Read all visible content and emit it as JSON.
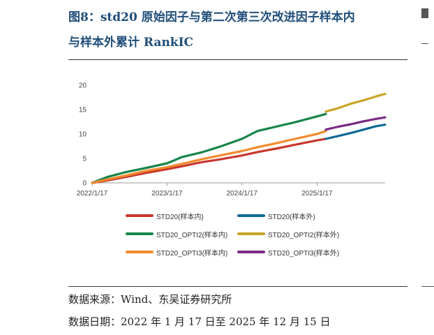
{
  "header": {
    "title_line1": "图8：std20 原始因子与第二次第三次改进因子样本内",
    "title_line2": "与样本外累计 RankIC"
  },
  "footer": {
    "source": "数据来源：Wind、东吴证券研究所",
    "date_range": "数据日期：2022 年 1 月 17 日至 2025 年 12 月 15 日"
  },
  "colors": {
    "title": "#1f4e79",
    "std20_in": "#c8372d",
    "std20_out": "#0e6a96",
    "opti2_in": "#18854a",
    "opti2_out": "#c9a429",
    "opti3_in": "#f28a2d",
    "opti3_out": "#7b2a86"
  },
  "chart_data": {
    "type": "line",
    "x_ticks": [
      "2022/1/17",
      "2023/1/17",
      "2024/1/17",
      "2025/1/17"
    ],
    "y_ticks": [
      "0",
      "5",
      "10",
      "15",
      "20"
    ],
    "ylim": [
      0,
      20
    ],
    "xlim": [
      "2022-01-17",
      "2025-12-15"
    ],
    "split_date": "2025-03-01",
    "legend_position": "bottom",
    "series": [
      {
        "name": "STD20(样本内)",
        "color_key": "std20_in",
        "points": [
          [
            "2022-01-17",
            0
          ],
          [
            "2022-04-01",
            0.5
          ],
          [
            "2022-07-01",
            1.2
          ],
          [
            "2022-10-01",
            2.0
          ],
          [
            "2023-01-17",
            2.8
          ],
          [
            "2023-04-01",
            3.4
          ],
          [
            "2023-07-01",
            4.2
          ],
          [
            "2023-10-01",
            4.8
          ],
          [
            "2024-01-17",
            5.6
          ],
          [
            "2024-04-01",
            6.3
          ],
          [
            "2024-07-01",
            7.0
          ],
          [
            "2024-10-01",
            7.8
          ],
          [
            "2025-01-17",
            8.7
          ],
          [
            "2025-03-01",
            9.0
          ]
        ]
      },
      {
        "name": "STD20(样本外)",
        "color_key": "std20_out",
        "points": [
          [
            "2025-03-01",
            9.0
          ],
          [
            "2025-05-01",
            9.6
          ],
          [
            "2025-07-01",
            10.2
          ],
          [
            "2025-09-01",
            10.9
          ],
          [
            "2025-11-01",
            11.6
          ],
          [
            "2025-12-15",
            11.9
          ]
        ]
      },
      {
        "name": "STD20_OPTI2(样本内)",
        "color_key": "opti2_in",
        "points": [
          [
            "2022-01-17",
            0
          ],
          [
            "2022-04-01",
            1.2
          ],
          [
            "2022-07-01",
            2.2
          ],
          [
            "2022-10-01",
            3.0
          ],
          [
            "2023-01-17",
            4.0
          ],
          [
            "2023-04-01",
            5.3
          ],
          [
            "2023-07-01",
            6.2
          ],
          [
            "2023-10-01",
            7.4
          ],
          [
            "2024-01-17",
            9.0
          ],
          [
            "2024-04-01",
            10.6
          ],
          [
            "2024-07-01",
            11.5
          ],
          [
            "2024-10-01",
            12.4
          ],
          [
            "2025-01-17",
            13.6
          ],
          [
            "2025-03-01",
            14.1
          ]
        ]
      },
      {
        "name": "STD20_OPTI2(样本外)",
        "color_key": "opti2_out",
        "points": [
          [
            "2025-03-01",
            14.6
          ],
          [
            "2025-05-01",
            15.3
          ],
          [
            "2025-07-01",
            16.2
          ],
          [
            "2025-09-01",
            16.9
          ],
          [
            "2025-11-01",
            17.7
          ],
          [
            "2025-12-15",
            18.2
          ]
        ]
      },
      {
        "name": "STD20_OPTI3(样本内)",
        "color_key": "opti3_in",
        "points": [
          [
            "2022-01-17",
            0
          ],
          [
            "2022-04-01",
            0.7
          ],
          [
            "2022-07-01",
            1.5
          ],
          [
            "2022-10-01",
            2.4
          ],
          [
            "2023-01-17",
            3.2
          ],
          [
            "2023-04-01",
            3.9
          ],
          [
            "2023-07-01",
            4.8
          ],
          [
            "2023-10-01",
            5.6
          ],
          [
            "2024-01-17",
            6.5
          ],
          [
            "2024-04-01",
            7.3
          ],
          [
            "2024-07-01",
            8.1
          ],
          [
            "2024-10-01",
            9.0
          ],
          [
            "2025-01-17",
            10.0
          ],
          [
            "2025-03-01",
            10.6
          ]
        ]
      },
      {
        "name": "STD20_OPTI3(样本外)",
        "color_key": "opti3_out",
        "points": [
          [
            "2025-03-01",
            10.9
          ],
          [
            "2025-05-01",
            11.5
          ],
          [
            "2025-07-01",
            12.0
          ],
          [
            "2025-09-01",
            12.6
          ],
          [
            "2025-11-01",
            13.1
          ],
          [
            "2025-12-15",
            13.4
          ]
        ]
      }
    ]
  }
}
